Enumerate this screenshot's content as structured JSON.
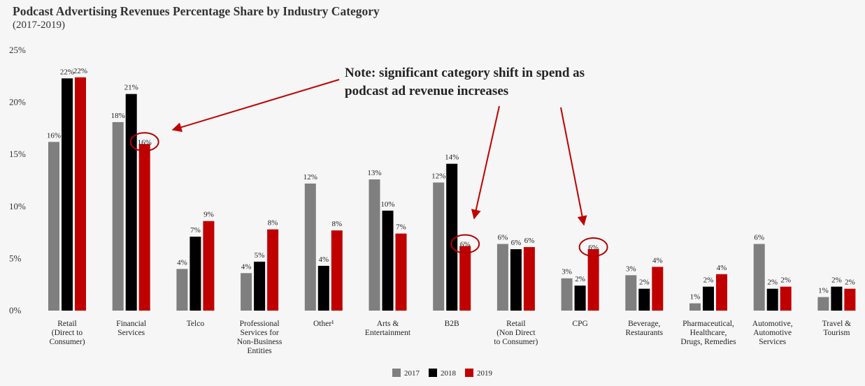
{
  "header": {
    "title": "Podcast Advertising Revenues Percentage Share by Industry Category",
    "subtitle": "(2017-2019)"
  },
  "annotation": {
    "lines": [
      "Note: significant category shift in spend as",
      "podcast ad revenue increases"
    ]
  },
  "colors": {
    "2017": "#7f7f7f",
    "2018": "#000000",
    "2019": "#c00000",
    "highlight": "#b30000"
  },
  "chart_data": {
    "type": "bar",
    "title": "Podcast Advertising Revenues Percentage Share by Industry Category",
    "subtitle": "(2017-2019)",
    "xlabel": "",
    "ylabel": "",
    "ylim": [
      0,
      25
    ],
    "yticks": [
      "0%",
      "5%",
      "10%",
      "15%",
      "20%",
      "25%"
    ],
    "grid": false,
    "legend_position": "bottom-center",
    "categories": [
      [
        "Retail",
        "(Direct to",
        "Consumer)"
      ],
      [
        "Financial",
        "Services"
      ],
      [
        "Telco"
      ],
      [
        "Professional",
        "Services for",
        "Non-Business",
        "Entities"
      ],
      [
        "Other¹"
      ],
      [
        "Arts &",
        "Entertainment"
      ],
      [
        "B2B"
      ],
      [
        "Retail",
        "(Non Direct",
        "to Consumer)"
      ],
      [
        "CPG"
      ],
      [
        "Beverage,",
        "Restaurants"
      ],
      [
        "Pharmaceutical,",
        "Healthcare,",
        "Drugs, Remedies"
      ],
      [
        "Automotive,",
        "Automotive",
        "Services"
      ],
      [
        "Travel &",
        "Tourism"
      ]
    ],
    "series": [
      {
        "name": "2017",
        "values": [
          16.2,
          18.1,
          4.0,
          3.6,
          12.2,
          12.6,
          12.3,
          6.4,
          3.1,
          3.4,
          0.7,
          6.4,
          1.3
        ],
        "labels": [
          "16%",
          "18%",
          "4%",
          "4%",
          "12%",
          "13%",
          "12%",
          "6%",
          "3%",
          "3%",
          "1%",
          "6%",
          "1%"
        ]
      },
      {
        "name": "2018",
        "values": [
          22.3,
          20.8,
          7.1,
          4.7,
          4.3,
          9.6,
          14.1,
          5.9,
          2.4,
          2.1,
          2.3,
          2.1,
          2.3
        ],
        "labels": [
          "22%",
          "21%",
          "7%",
          "5%",
          "4%",
          "10%",
          "14%",
          "6%",
          "2%",
          "2%",
          "2%",
          "2%",
          "2%"
        ]
      },
      {
        "name": "2019",
        "values": [
          22.4,
          16.0,
          8.6,
          7.8,
          7.7,
          7.4,
          6.2,
          6.1,
          5.9,
          4.2,
          3.5,
          2.3,
          2.1
        ],
        "labels": [
          "22%",
          "16%",
          "9%",
          "8%",
          "8%",
          "7%",
          "6%",
          "6%",
          "6%",
          "4%",
          "4%",
          "2%",
          "2%"
        ]
      }
    ],
    "highlights": [
      {
        "category_index": 1,
        "series": "2019",
        "label": "16%"
      },
      {
        "category_index": 6,
        "series": "2019",
        "label": "6%"
      },
      {
        "category_index": 8,
        "series": "2019",
        "label": "6%"
      }
    ]
  }
}
